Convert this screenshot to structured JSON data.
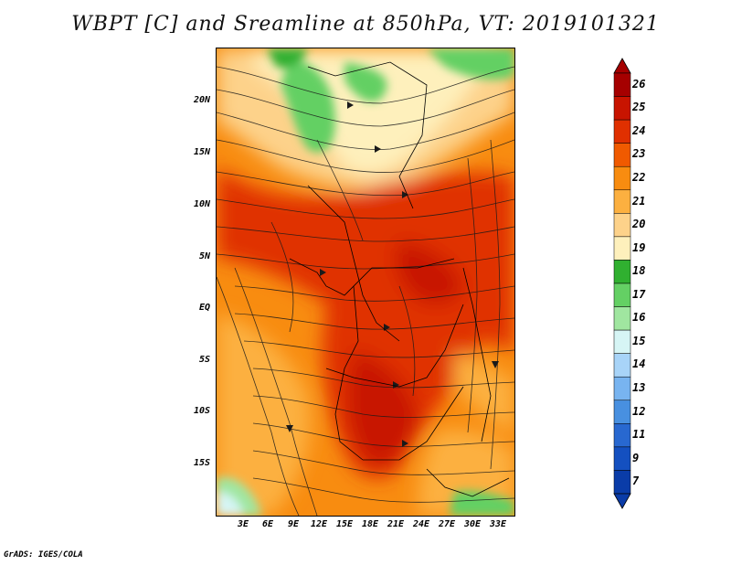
{
  "title": "WBPT [C] and Sreamline at 850hPa, VT: 2019101321",
  "y_axis": [
    "20N",
    "15N",
    "10N",
    "5N",
    "EQ",
    "5S",
    "10S",
    "15S"
  ],
  "x_axis": [
    "3E",
    "6E",
    "9E",
    "12E",
    "15E",
    "18E",
    "21E",
    "24E",
    "27E",
    "30E",
    "33E"
  ],
  "colorbar": {
    "labels": [
      "26",
      "25",
      "24",
      "23",
      "22",
      "21",
      "20",
      "19",
      "18",
      "17",
      "16",
      "15",
      "14",
      "13",
      "12",
      "11",
      "9",
      "7"
    ],
    "colors": [
      "#a50000",
      "#c81400",
      "#e03000",
      "#f05a00",
      "#f88c10",
      "#fcb040",
      "#fdd28a",
      "#fef0bc",
      "#30b030",
      "#64d064",
      "#a0e6a0",
      "#d6f5f5",
      "#a8d4f8",
      "#78b4f0",
      "#4890e0",
      "#2868d0",
      "#1450c0",
      "#0a3ca8"
    ]
  },
  "credit": "GrADS: IGES/COLA"
}
